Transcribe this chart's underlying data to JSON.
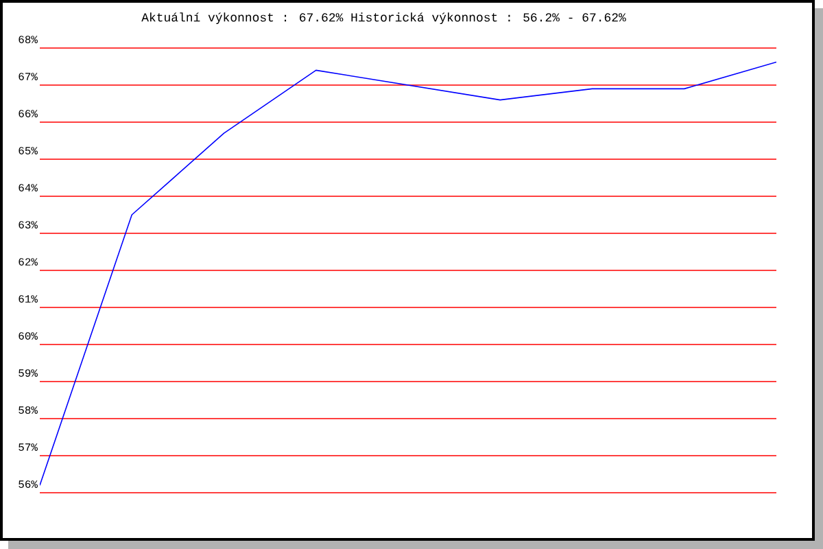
{
  "chart_data": {
    "type": "line",
    "title": "Aktuální výkonnost : 67.62%  Historická výkonnost : 56.2% - 67.62%",
    "categories": [
      null,
      null,
      null,
      null,
      null,
      null,
      null,
      null,
      null
    ],
    "series": [
      {
        "color": "#0000ff",
        "values": [
          56.2,
          63.5,
          65.7,
          67.4,
          67.0,
          66.6,
          66.9,
          66.9,
          67.62
        ]
      }
    ],
    "ylim": [
      56,
      68
    ],
    "yticks": [
      {
        "value": 56,
        "label": "56%"
      },
      {
        "value": 57,
        "label": "57%"
      },
      {
        "value": 58,
        "label": "58%"
      },
      {
        "value": 59,
        "label": "59%"
      },
      {
        "value": 60,
        "label": "60%"
      },
      {
        "value": 61,
        "label": "61%"
      },
      {
        "value": 62,
        "label": "62%"
      },
      {
        "value": 63,
        "label": "63%"
      },
      {
        "value": 64,
        "label": "64%"
      },
      {
        "value": 65,
        "label": "65%"
      },
      {
        "value": 66,
        "label": "66%"
      },
      {
        "value": 67,
        "label": "67%"
      },
      {
        "value": 68,
        "label": "68%"
      }
    ],
    "grid": "y",
    "marker": "none",
    "line_style": "solid"
  }
}
